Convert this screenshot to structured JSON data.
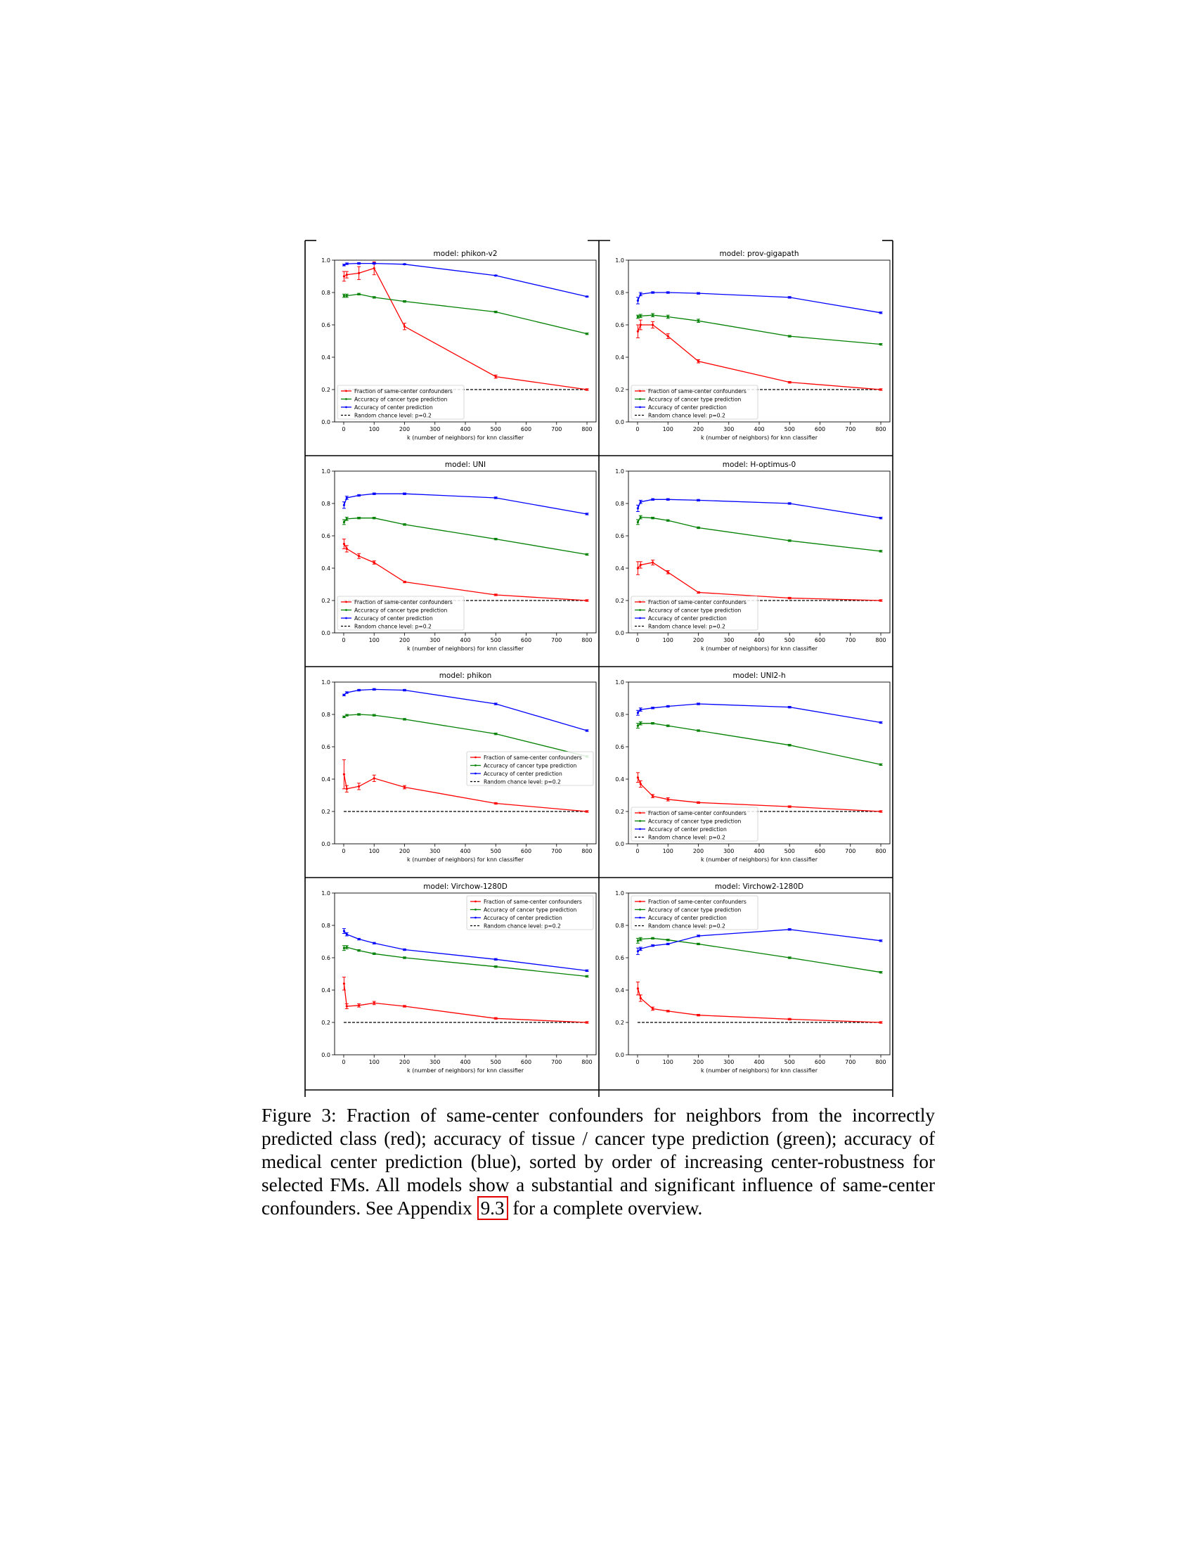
{
  "legend": {
    "same_center": "Fraction of same-center confounders",
    "cancer_type": "Accuracy of cancer type prediction",
    "center": "Accuracy of center prediction",
    "random": "Random chance level: p=0.2"
  },
  "colors": {
    "red": "#ff0000",
    "green": "#008000",
    "blue": "#0000ff",
    "random": "#000000"
  },
  "chart_data": [
    {
      "type": "line",
      "title": "model: phikon-v2",
      "xlabel": "k (number of neighbors) for knn classifier",
      "ylabel": "",
      "x": [
        1,
        10,
        50,
        100,
        200,
        500,
        800
      ],
      "xlim": [
        0,
        800
      ],
      "ylim": [
        0,
        1
      ],
      "legend_position": "lower-left",
      "random_chance": 0.2,
      "series": [
        {
          "key": "same_center",
          "values": [
            0.9,
            0.91,
            0.92,
            0.95,
            0.59,
            0.28,
            0.2
          ],
          "errors": [
            0.03,
            0.02,
            0.04,
            0.04,
            0.02,
            0.01,
            0.005
          ]
        },
        {
          "key": "cancer_type",
          "values": [
            0.78,
            0.78,
            0.79,
            0.77,
            0.745,
            0.68,
            0.545
          ],
          "errors": [
            0.01,
            0.01,
            0.005,
            0.005,
            0.005,
            0.005,
            0.005
          ]
        },
        {
          "key": "center",
          "values": [
            0.97,
            0.978,
            0.98,
            0.98,
            0.975,
            0.905,
            0.775
          ],
          "errors": [
            0.005,
            0.005,
            0.005,
            0.005,
            0.003,
            0.003,
            0.003
          ]
        }
      ]
    },
    {
      "type": "line",
      "title": "model: prov-gigapath",
      "xlabel": "k (number of neighbors) for knn classifier",
      "ylabel": "",
      "x": [
        1,
        10,
        50,
        100,
        200,
        500,
        800
      ],
      "xlim": [
        0,
        800
      ],
      "ylim": [
        0,
        1
      ],
      "legend_position": "lower-left",
      "random_chance": 0.2,
      "series": [
        {
          "key": "same_center",
          "values": [
            0.56,
            0.6,
            0.6,
            0.53,
            0.375,
            0.245,
            0.2
          ],
          "errors": [
            0.04,
            0.03,
            0.02,
            0.015,
            0.01,
            0.005,
            0.005
          ]
        },
        {
          "key": "cancer_type",
          "values": [
            0.65,
            0.655,
            0.66,
            0.65,
            0.625,
            0.53,
            0.48
          ],
          "errors": [
            0.01,
            0.01,
            0.01,
            0.01,
            0.01,
            0.005,
            0.005
          ]
        },
        {
          "key": "center",
          "values": [
            0.75,
            0.79,
            0.8,
            0.8,
            0.795,
            0.77,
            0.675
          ],
          "errors": [
            0.02,
            0.01,
            0.005,
            0.005,
            0.005,
            0.005,
            0.005
          ]
        }
      ]
    },
    {
      "type": "line",
      "title": "model: UNI",
      "xlabel": "k (number of neighbors) for knn classifier",
      "ylabel": "",
      "x": [
        1,
        10,
        50,
        100,
        200,
        500,
        800
      ],
      "xlim": [
        0,
        800
      ],
      "ylim": [
        0,
        1
      ],
      "legend_position": "lower-left",
      "random_chance": 0.2,
      "series": [
        {
          "key": "same_center",
          "values": [
            0.55,
            0.52,
            0.475,
            0.435,
            0.315,
            0.235,
            0.2
          ],
          "errors": [
            0.03,
            0.02,
            0.015,
            0.01,
            0.005,
            0.005,
            0.005
          ]
        },
        {
          "key": "cancer_type",
          "values": [
            0.685,
            0.705,
            0.71,
            0.71,
            0.67,
            0.58,
            0.485
          ],
          "errors": [
            0.015,
            0.01,
            0.005,
            0.005,
            0.005,
            0.005,
            0.005
          ]
        },
        {
          "key": "center",
          "values": [
            0.79,
            0.835,
            0.85,
            0.86,
            0.86,
            0.835,
            0.735
          ],
          "errors": [
            0.02,
            0.01,
            0.005,
            0.005,
            0.005,
            0.005,
            0.005
          ]
        }
      ]
    },
    {
      "type": "line",
      "title": "model: H-optimus-0",
      "xlabel": "k (number of neighbors) for knn classifier",
      "ylabel": "",
      "x": [
        1,
        10,
        50,
        100,
        200,
        500,
        800
      ],
      "xlim": [
        0,
        800
      ],
      "ylim": [
        0,
        1
      ],
      "legend_position": "lower-left",
      "random_chance": 0.2,
      "series": [
        {
          "key": "same_center",
          "values": [
            0.4,
            0.42,
            0.435,
            0.375,
            0.25,
            0.215,
            0.2
          ],
          "errors": [
            0.04,
            0.02,
            0.015,
            0.01,
            0.005,
            0.005,
            0.005
          ]
        },
        {
          "key": "cancer_type",
          "values": [
            0.685,
            0.715,
            0.71,
            0.695,
            0.65,
            0.57,
            0.505
          ],
          "errors": [
            0.015,
            0.01,
            0.005,
            0.005,
            0.005,
            0.005,
            0.005
          ]
        },
        {
          "key": "center",
          "values": [
            0.77,
            0.81,
            0.825,
            0.825,
            0.82,
            0.8,
            0.71
          ],
          "errors": [
            0.02,
            0.01,
            0.005,
            0.005,
            0.005,
            0.005,
            0.005
          ]
        }
      ]
    },
    {
      "type": "line",
      "title": "model: phikon",
      "xlabel": "k (number of neighbors) for knn classifier",
      "ylabel": "",
      "x": [
        1,
        10,
        50,
        100,
        200,
        500,
        800
      ],
      "xlim": [
        0,
        800
      ],
      "ylim": [
        0,
        1
      ],
      "legend_position": "center-right",
      "random_chance": 0.2,
      "series": [
        {
          "key": "same_center",
          "values": [
            0.43,
            0.34,
            0.355,
            0.405,
            0.35,
            0.25,
            0.2
          ],
          "errors": [
            0.09,
            0.02,
            0.02,
            0.02,
            0.01,
            0.005,
            0.005
          ]
        },
        {
          "key": "cancer_type",
          "values": [
            0.785,
            0.795,
            0.8,
            0.795,
            0.77,
            0.68,
            0.54
          ],
          "errors": [
            0.005,
            0.005,
            0.005,
            0.005,
            0.005,
            0.005,
            0.005
          ]
        },
        {
          "key": "center",
          "values": [
            0.92,
            0.935,
            0.95,
            0.955,
            0.95,
            0.865,
            0.7
          ],
          "errors": [
            0.005,
            0.005,
            0.005,
            0.005,
            0.005,
            0.005,
            0.005
          ]
        }
      ]
    },
    {
      "type": "line",
      "title": "model: UNI2-h",
      "xlabel": "k (number of neighbors) for knn classifier",
      "ylabel": "",
      "x": [
        1,
        10,
        50,
        100,
        200,
        500,
        800
      ],
      "xlim": [
        0,
        800
      ],
      "ylim": [
        0,
        1
      ],
      "legend_position": "lower-left",
      "random_chance": 0.2,
      "series": [
        {
          "key": "same_center",
          "values": [
            0.41,
            0.37,
            0.295,
            0.275,
            0.255,
            0.23,
            0.2
          ],
          "errors": [
            0.03,
            0.02,
            0.01,
            0.01,
            0.005,
            0.005,
            0.005
          ]
        },
        {
          "key": "cancer_type",
          "values": [
            0.73,
            0.745,
            0.745,
            0.73,
            0.7,
            0.61,
            0.49
          ],
          "errors": [
            0.015,
            0.01,
            0.005,
            0.005,
            0.005,
            0.005,
            0.005
          ]
        },
        {
          "key": "center",
          "values": [
            0.81,
            0.83,
            0.84,
            0.85,
            0.865,
            0.845,
            0.75
          ],
          "errors": [
            0.015,
            0.01,
            0.005,
            0.005,
            0.005,
            0.005,
            0.005
          ]
        }
      ]
    },
    {
      "type": "line",
      "title": "model: Virchow-1280D",
      "xlabel": "k (number of neighbors) for knn classifier",
      "ylabel": "",
      "x": [
        1,
        10,
        50,
        100,
        200,
        500,
        800
      ],
      "xlim": [
        0,
        800
      ],
      "ylim": [
        0,
        1
      ],
      "legend_position": "top-right",
      "random_chance": 0.2,
      "series": [
        {
          "key": "same_center",
          "values": [
            0.44,
            0.3,
            0.305,
            0.32,
            0.3,
            0.225,
            0.2
          ],
          "errors": [
            0.04,
            0.015,
            0.01,
            0.01,
            0.005,
            0.005,
            0.005
          ]
        },
        {
          "key": "cancer_type",
          "values": [
            0.66,
            0.665,
            0.645,
            0.625,
            0.6,
            0.545,
            0.485
          ],
          "errors": [
            0.015,
            0.01,
            0.005,
            0.005,
            0.005,
            0.005,
            0.005
          ]
        },
        {
          "key": "center",
          "values": [
            0.765,
            0.745,
            0.715,
            0.69,
            0.65,
            0.59,
            0.52
          ],
          "errors": [
            0.015,
            0.01,
            0.005,
            0.005,
            0.005,
            0.005,
            0.005
          ]
        }
      ]
    },
    {
      "type": "line",
      "title": "model: Virchow2-1280D",
      "xlabel": "k (number of neighbors) for knn classifier",
      "ylabel": "",
      "x": [
        1,
        10,
        50,
        100,
        200,
        500,
        800
      ],
      "xlim": [
        0,
        800
      ],
      "ylim": [
        0,
        1
      ],
      "legend_position": "top-left",
      "random_chance": 0.2,
      "series": [
        {
          "key": "same_center",
          "values": [
            0.41,
            0.35,
            0.285,
            0.27,
            0.245,
            0.22,
            0.2
          ],
          "errors": [
            0.04,
            0.02,
            0.01,
            0.005,
            0.005,
            0.005,
            0.005
          ]
        },
        {
          "key": "cancer_type",
          "values": [
            0.705,
            0.715,
            0.72,
            0.71,
            0.685,
            0.6,
            0.51
          ],
          "errors": [
            0.015,
            0.01,
            0.005,
            0.005,
            0.005,
            0.005,
            0.005
          ]
        },
        {
          "key": "center",
          "values": [
            0.64,
            0.655,
            0.675,
            0.685,
            0.735,
            0.775,
            0.705
          ],
          "errors": [
            0.02,
            0.01,
            0.005,
            0.005,
            0.005,
            0.005,
            0.005
          ]
        }
      ]
    }
  ],
  "caption": {
    "label": "Figure 3:",
    "text_before": "Fraction of same-center confounders for neighbors from the incorrectly predicted class (red); accuracy of tissue / cancer type prediction (green); accuracy of medical center prediction (blue), sorted by order of increasing center-robustness for selected FMs. All models show a substantial and significant influence of same-center confounders. See Appendix",
    "ref": "9.3",
    "text_after": "for a complete overview."
  }
}
